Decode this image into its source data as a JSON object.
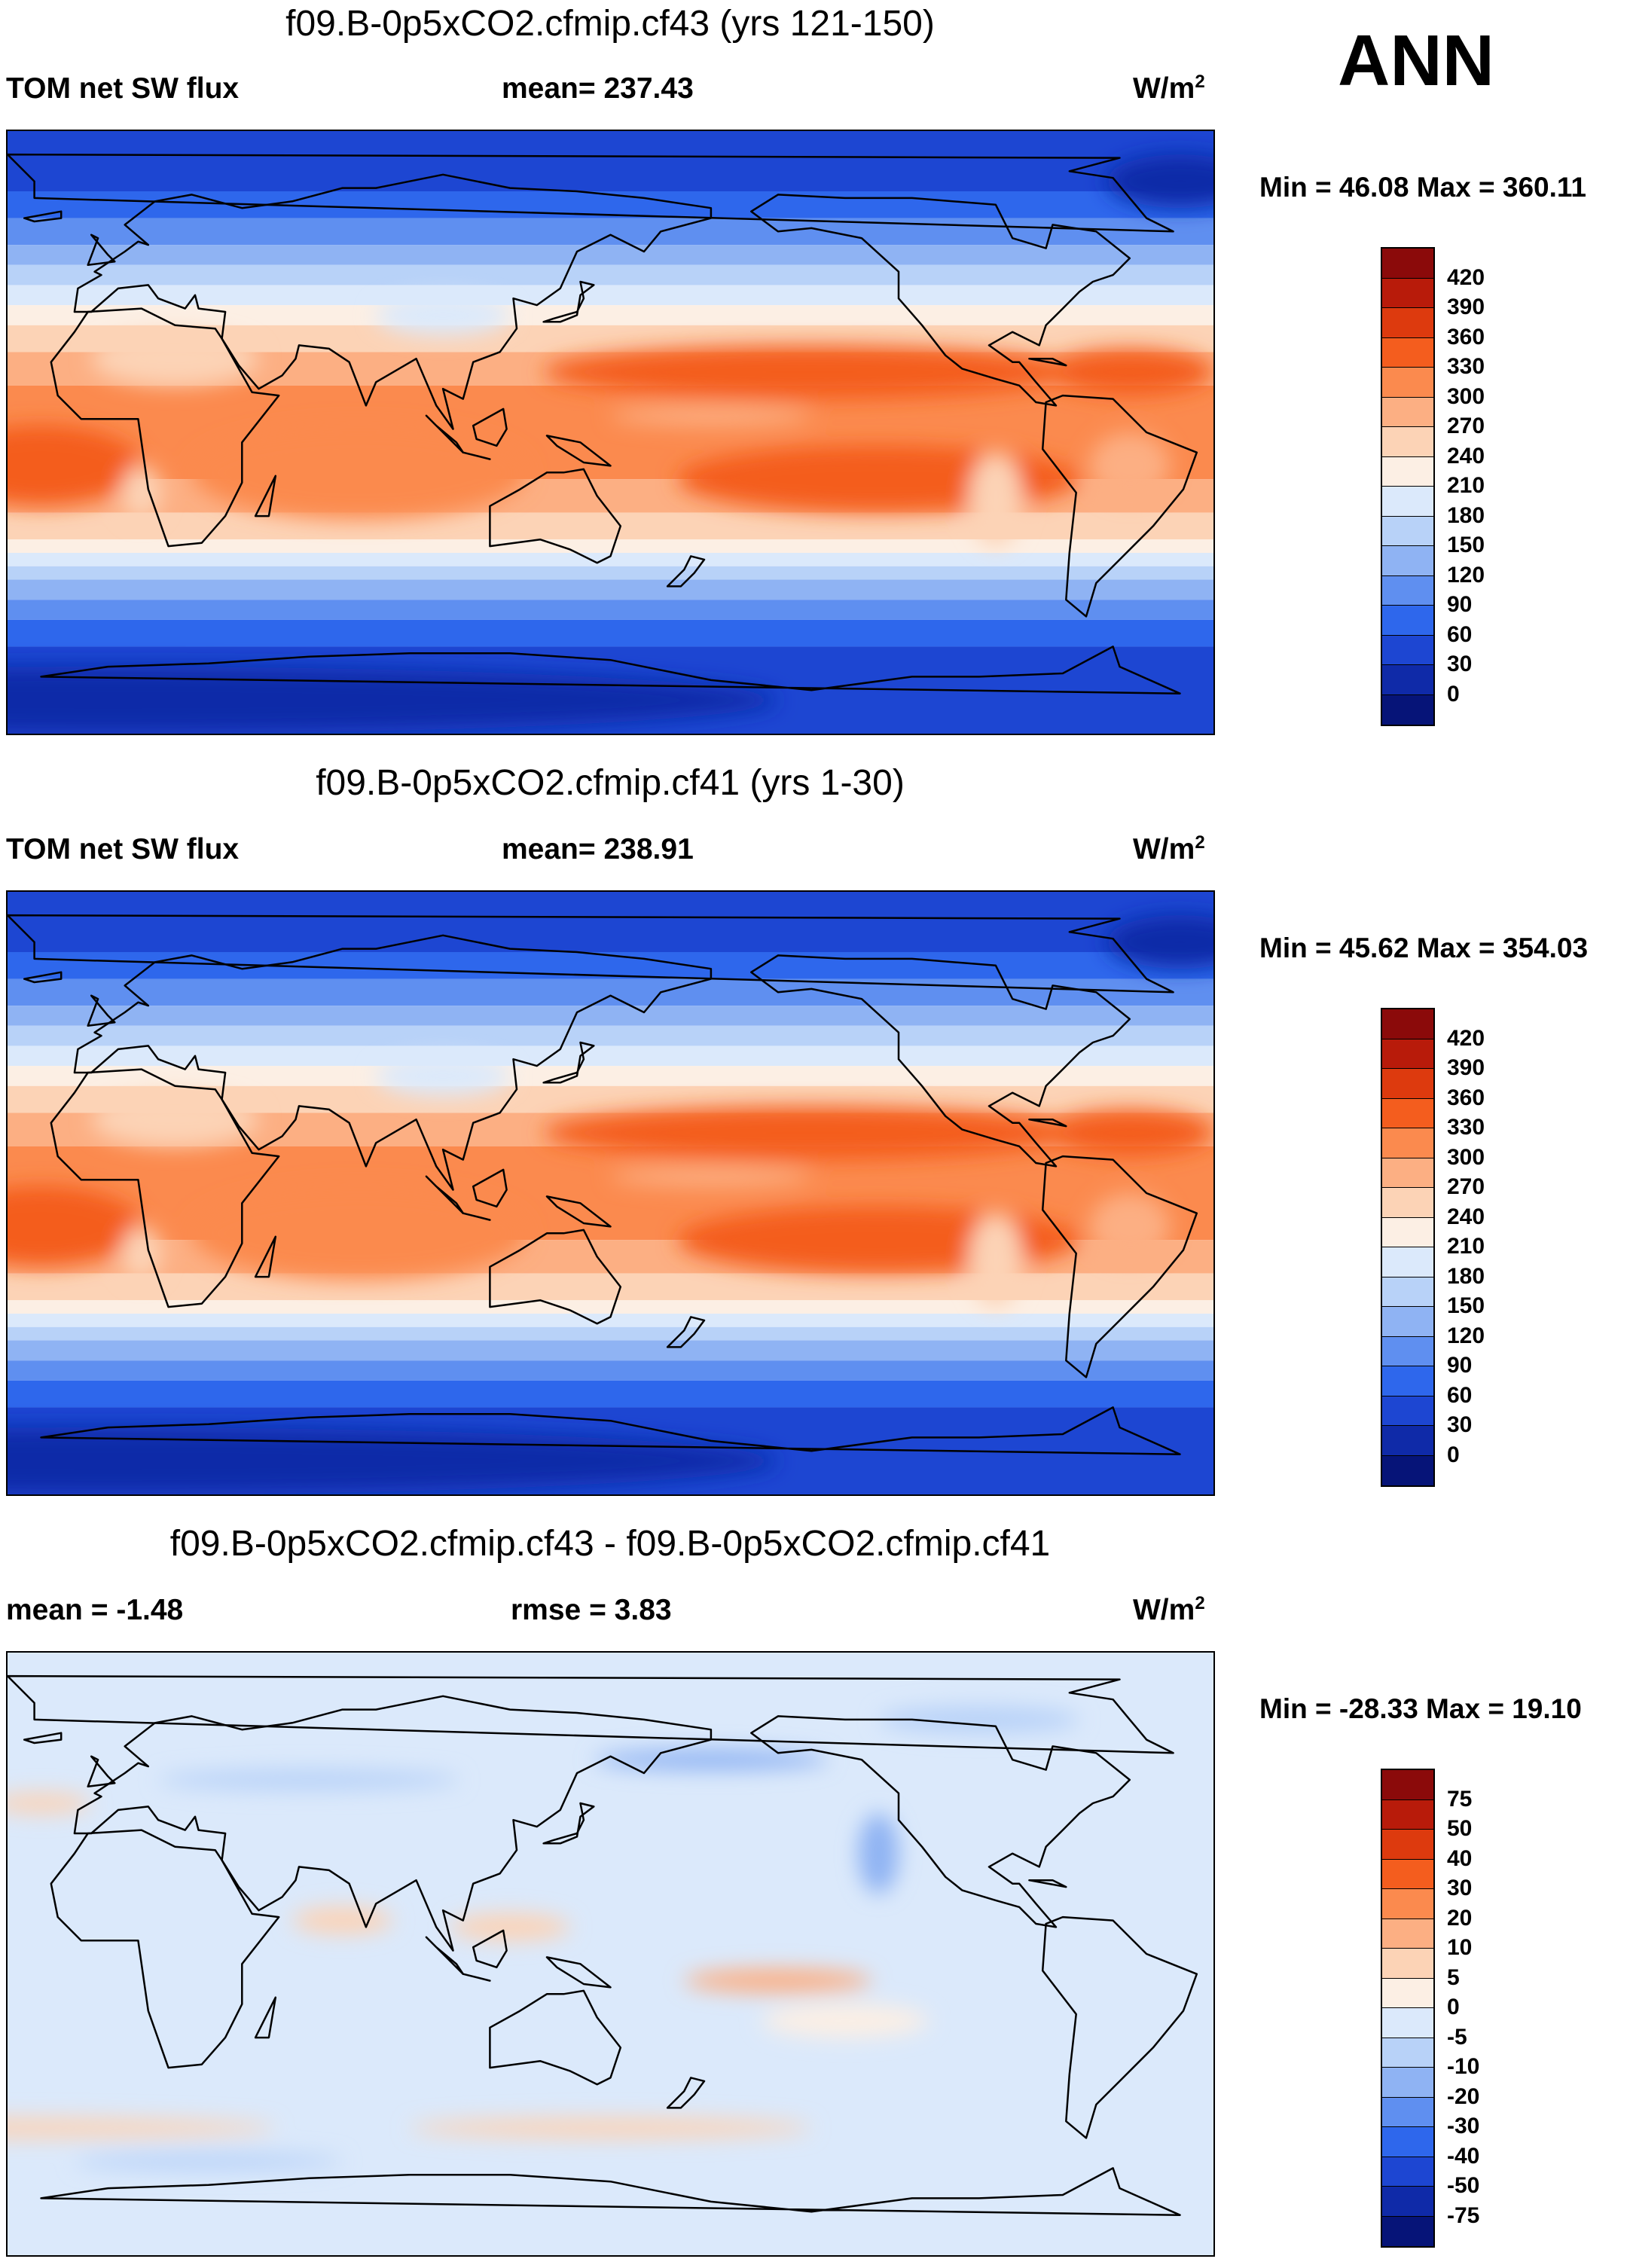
{
  "season": "ANN",
  "panels": [
    {
      "title": "f09.B-0p5xCO2.cfmip.cf43 (yrs 121-150)",
      "left_label": "TOM net SW flux",
      "center_label": "mean= 237.43",
      "units": "W/m",
      "units_sup": "2",
      "minmax": "Min =  46.08 Max = 360.11",
      "colorbar": {
        "labels": [
          "420",
          "390",
          "360",
          "330",
          "300",
          "270",
          "240",
          "210",
          "180",
          "150",
          "120",
          "90",
          "60",
          "30",
          "0"
        ],
        "colors": [
          "#8b0a0a",
          "#b81b0a",
          "#dd3a0e",
          "#f45d1e",
          "#fb8a4e",
          "#fcaf83",
          "#fcd3b6",
          "#fcefe4",
          "#dbe9fb",
          "#b8d2f8",
          "#8fb3f3",
          "#5f8ff0",
          "#2e67ec",
          "#1d46d2",
          "#0f2aa8",
          "#061478"
        ]
      },
      "field": "abs"
    },
    {
      "title": "f09.B-0p5xCO2.cfmip.cf41 (yrs 1-30)",
      "left_label": "TOM net SW flux",
      "center_label": "mean= 238.91",
      "units": "W/m",
      "units_sup": "2",
      "minmax": "Min =  45.62 Max = 354.03",
      "colorbar": {
        "labels": [
          "420",
          "390",
          "360",
          "330",
          "300",
          "270",
          "240",
          "210",
          "180",
          "150",
          "120",
          "90",
          "60",
          "30",
          "0"
        ],
        "colors": [
          "#8b0a0a",
          "#b81b0a",
          "#dd3a0e",
          "#f45d1e",
          "#fb8a4e",
          "#fcaf83",
          "#fcd3b6",
          "#fcefe4",
          "#dbe9fb",
          "#b8d2f8",
          "#8fb3f3",
          "#5f8ff0",
          "#2e67ec",
          "#1d46d2",
          "#0f2aa8",
          "#061478"
        ]
      },
      "field": "abs"
    },
    {
      "title": "f09.B-0p5xCO2.cfmip.cf43 - f09.B-0p5xCO2.cfmip.cf41",
      "left_label": "mean =  -1.48",
      "center_label": "rmse =   3.83",
      "units": "W/m",
      "units_sup": "2",
      "minmax": "Min = -28.33 Max =  19.10",
      "colorbar": {
        "labels": [
          "75",
          "50",
          "40",
          "30",
          "20",
          "10",
          "5",
          "0",
          "-5",
          "-10",
          "-20",
          "-30",
          "-40",
          "-50",
          "-75"
        ],
        "colors": [
          "#8b0a0a",
          "#b81b0a",
          "#dd3a0e",
          "#f45d1e",
          "#fb8a4e",
          "#fcaf83",
          "#fcd3b6",
          "#fcefe4",
          "#dbe9fb",
          "#b8d2f8",
          "#8fb3f3",
          "#5f8ff0",
          "#2e67ec",
          "#1d46d2",
          "#0f2aa8",
          "#061478"
        ]
      },
      "field": "diff"
    }
  ]
}
